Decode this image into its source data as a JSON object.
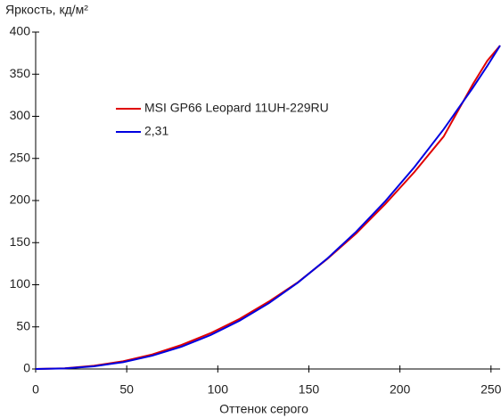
{
  "chart_data": {
    "type": "line",
    "y_label": "Яркость, кд/м²",
    "x_label": "Оттенок серого",
    "x": [
      0,
      16,
      32,
      48,
      64,
      80,
      96,
      112,
      128,
      144,
      160,
      176,
      192,
      208,
      224,
      240,
      248,
      255
    ],
    "series": [
      {
        "name": "MSI GP66 Leopard 11UH-229RU",
        "color": "#e00000",
        "values": [
          0,
          0.8,
          3.8,
          9.2,
          17.2,
          28.5,
          42.5,
          59.5,
          80,
          103,
          130.5,
          161,
          196,
          234,
          276,
          338,
          366,
          384
        ]
      },
      {
        "name": "2,31",
        "color": "#0000e0",
        "values": [
          0,
          0.64,
          3.2,
          8.1,
          15.8,
          26.4,
          40.2,
          57.4,
          78.1,
          102.6,
          130.9,
          163,
          199.3,
          239.8,
          284.6,
          333.8,
          360,
          384
        ]
      }
    ],
    "xlim": [
      0,
      255
    ],
    "ylim": [
      0,
      400
    ],
    "xticks": [
      0,
      50,
      100,
      150,
      200,
      250
    ],
    "yticks": [
      0,
      50,
      100,
      150,
      200,
      250,
      300,
      350,
      400
    ],
    "grid": false,
    "legend": "upper left"
  }
}
